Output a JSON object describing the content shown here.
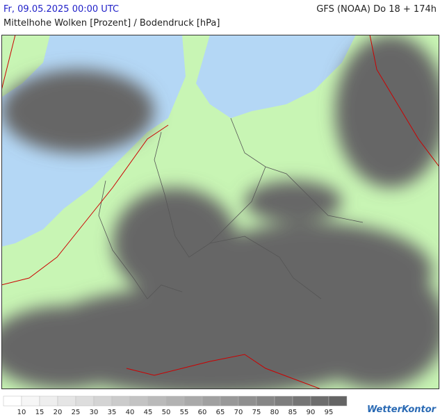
{
  "header": {
    "datetime": "Fr, 09.05.2025 00:00 UTC",
    "model": "GFS (NOAA) Do 18 + 174h",
    "subtitle": "Mittelhohe Wolken [Prozent] / Bodendruck [hPa]"
  },
  "legend": {
    "labels": [
      10,
      15,
      20,
      25,
      30,
      35,
      40,
      45,
      50,
      55,
      60,
      65,
      70,
      75,
      80,
      85,
      90,
      95
    ]
  },
  "logo": "WetterKontor"
}
